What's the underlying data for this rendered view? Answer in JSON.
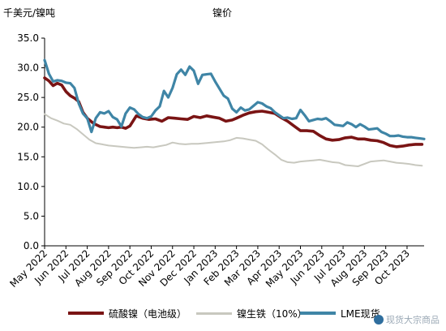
{
  "chart_data": {
    "type": "line",
    "title": "镍价",
    "ylabel": "千美元/镍吨",
    "xlabel": "",
    "ylim": [
      0,
      35
    ],
    "yticks": [
      "0.0",
      "5.0",
      "10.0",
      "15.0",
      "20.0",
      "25.0",
      "30.0",
      "35.0"
    ],
    "categories": [
      "May 2022",
      "Jun 2022",
      "Jul 2022",
      "Aug 2022",
      "Sep 2022",
      "Oct 2022",
      "Nov 2022",
      "Dec 2022",
      "Jan 2023",
      "Feb 2023",
      "Mar 2023",
      "Apr 2023",
      "May 2023",
      "Jun 2023",
      "Jul 2023",
      "Aug 2023",
      "Sep 2023",
      "Oct 2023"
    ],
    "x_end": 17.8,
    "grid": false,
    "legend_position": "bottom",
    "series": [
      {
        "name": "硫酸镍（电池级）",
        "color": "#7a1414",
        "x": [
          0,
          0.2,
          0.4,
          0.6,
          0.8,
          1.0,
          1.2,
          1.4,
          1.6,
          1.8,
          2.0,
          2.3,
          2.6,
          2.8,
          3.0,
          3.2,
          3.4,
          3.6,
          3.8,
          4.0,
          4.3,
          4.6,
          4.9,
          5.2,
          5.5,
          5.8,
          6.1,
          6.4,
          6.7,
          7.0,
          7.3,
          7.6,
          7.9,
          8.2,
          8.5,
          8.8,
          9.0,
          9.3,
          9.6,
          9.9,
          10.2,
          10.5,
          10.8,
          11.1,
          11.4,
          11.7,
          12.0,
          12.3,
          12.6,
          12.9,
          13.2,
          13.5,
          13.8,
          14.1,
          14.4,
          14.7,
          15.0,
          15.3,
          15.6,
          15.9,
          16.2,
          16.5,
          16.8,
          17.1,
          17.4,
          17.7
        ],
        "values": [
          28.3,
          27.8,
          27.0,
          27.4,
          27.1,
          26.0,
          25.3,
          24.9,
          24.3,
          22.5,
          21.5,
          20.6,
          20.1,
          20.0,
          19.9,
          20.0,
          19.9,
          20.0,
          19.8,
          20.2,
          21.9,
          21.5,
          21.3,
          21.4,
          21.0,
          21.6,
          21.5,
          21.4,
          21.3,
          21.8,
          21.6,
          21.9,
          21.7,
          21.5,
          21.0,
          21.2,
          21.5,
          22.0,
          22.4,
          22.6,
          22.7,
          22.5,
          22.3,
          21.6,
          21.0,
          20.2,
          19.4,
          19.4,
          19.3,
          18.6,
          18.0,
          17.8,
          17.9,
          18.2,
          18.3,
          18.0,
          18.0,
          17.8,
          17.7,
          17.4,
          16.9,
          16.7,
          16.8,
          17.0,
          17.1,
          17.1
        ]
      },
      {
        "name": "镍生铁（10%）",
        "color": "#c8c8bf",
        "x": [
          0,
          0.3,
          0.6,
          0.9,
          1.2,
          1.5,
          1.8,
          2.1,
          2.4,
          2.7,
          3.0,
          3.3,
          3.6,
          3.9,
          4.2,
          4.5,
          4.8,
          5.1,
          5.4,
          5.7,
          6.0,
          6.3,
          6.6,
          6.9,
          7.2,
          7.5,
          7.8,
          8.1,
          8.4,
          8.7,
          9.0,
          9.3,
          9.6,
          9.9,
          10.2,
          10.5,
          10.8,
          11.1,
          11.4,
          11.7,
          12.0,
          12.3,
          12.6,
          12.9,
          13.2,
          13.5,
          13.8,
          14.1,
          14.4,
          14.7,
          15.0,
          15.3,
          15.6,
          15.9,
          16.2,
          16.5,
          16.8,
          17.1,
          17.4,
          17.7
        ],
        "values": [
          22.2,
          21.5,
          21.1,
          20.6,
          20.4,
          19.7,
          18.8,
          17.9,
          17.3,
          17.1,
          16.9,
          16.8,
          16.7,
          16.6,
          16.5,
          16.6,
          16.7,
          16.6,
          16.8,
          17.0,
          17.4,
          17.2,
          17.1,
          17.2,
          17.2,
          17.3,
          17.4,
          17.5,
          17.6,
          17.8,
          18.2,
          18.1,
          17.9,
          17.7,
          17.1,
          16.2,
          15.4,
          14.5,
          14.1,
          14.0,
          14.2,
          14.3,
          14.4,
          14.5,
          14.3,
          14.1,
          14.0,
          13.6,
          13.5,
          13.4,
          13.8,
          14.2,
          14.3,
          14.4,
          14.2,
          14.0,
          13.9,
          13.8,
          13.6,
          13.5
        ]
      },
      {
        "name": "LME现货",
        "color": "#3f85a6",
        "x": [
          0,
          0.2,
          0.4,
          0.6,
          0.8,
          1.0,
          1.2,
          1.4,
          1.6,
          1.8,
          2.0,
          2.2,
          2.4,
          2.6,
          2.8,
          3.0,
          3.2,
          3.4,
          3.6,
          3.8,
          4.0,
          4.2,
          4.4,
          4.6,
          4.8,
          5.0,
          5.2,
          5.4,
          5.6,
          5.8,
          6.0,
          6.2,
          6.4,
          6.6,
          6.8,
          7.0,
          7.2,
          7.4,
          7.6,
          7.8,
          8.0,
          8.2,
          8.4,
          8.6,
          8.8,
          9.0,
          9.2,
          9.4,
          9.6,
          9.8,
          10.0,
          10.2,
          10.4,
          10.6,
          10.8,
          11.0,
          11.2,
          11.4,
          11.6,
          11.8,
          12.0,
          12.2,
          12.4,
          12.6,
          12.8,
          13.0,
          13.2,
          13.4,
          13.6,
          13.8,
          14.0,
          14.2,
          14.4,
          14.6,
          14.8,
          15.0,
          15.2,
          15.4,
          15.6,
          15.8,
          16.0,
          16.2,
          16.4,
          16.6,
          16.8,
          17.0,
          17.2,
          17.4,
          17.6,
          17.8
        ],
        "values": [
          31.3,
          29.0,
          27.7,
          27.9,
          27.8,
          27.5,
          27.4,
          26.6,
          24.0,
          22.3,
          21.5,
          19.2,
          21.5,
          22.5,
          22.3,
          22.7,
          21.7,
          21.3,
          20.1,
          22.3,
          23.3,
          23.0,
          22.2,
          21.7,
          21.5,
          21.8,
          22.8,
          23.5,
          26.1,
          25.0,
          26.6,
          28.9,
          29.7,
          28.8,
          30.2,
          29.5,
          27.3,
          28.8,
          28.9,
          29.0,
          27.7,
          26.5,
          25.3,
          24.8,
          23.1,
          22.5,
          23.3,
          22.8,
          23.0,
          23.6,
          24.2,
          24.0,
          23.5,
          23.2,
          22.5,
          22.0,
          21.5,
          21.6,
          21.4,
          21.5,
          22.9,
          22.0,
          21.0,
          21.2,
          21.4,
          21.3,
          21.5,
          21.0,
          20.4,
          20.3,
          20.2,
          20.8,
          20.5,
          20.0,
          20.5,
          20.1,
          19.6,
          19.7,
          19.8,
          19.2,
          18.9,
          18.5,
          18.5,
          18.6,
          18.4,
          18.3,
          18.3,
          18.2,
          18.1,
          18.0
        ]
      }
    ]
  },
  "watermark": "现货大宗商品"
}
